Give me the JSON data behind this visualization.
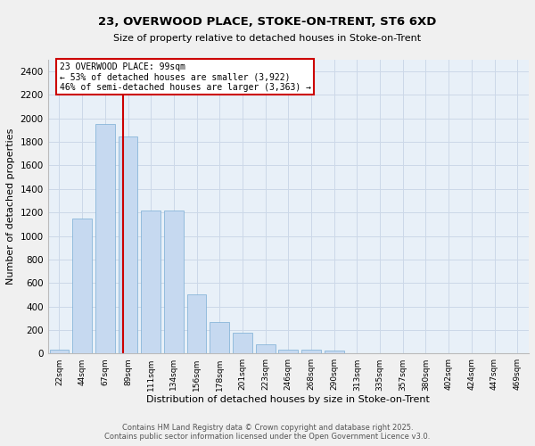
{
  "title1": "23, OVERWOOD PLACE, STOKE-ON-TRENT, ST6 6XD",
  "title2": "Size of property relative to detached houses in Stoke-on-Trent",
  "xlabel": "Distribution of detached houses by size in Stoke-on-Trent",
  "ylabel": "Number of detached properties",
  "categories": [
    "22sqm",
    "44sqm",
    "67sqm",
    "89sqm",
    "111sqm",
    "134sqm",
    "156sqm",
    "178sqm",
    "201sqm",
    "223sqm",
    "246sqm",
    "268sqm",
    "290sqm",
    "313sqm",
    "335sqm",
    "357sqm",
    "380sqm",
    "402sqm",
    "424sqm",
    "447sqm",
    "469sqm"
  ],
  "values": [
    30,
    1150,
    1950,
    1850,
    1220,
    1220,
    500,
    270,
    175,
    75,
    35,
    30,
    25,
    5,
    0,
    0,
    0,
    0,
    0,
    0,
    0
  ],
  "bar_color": "#c6d9f0",
  "bar_edge_color": "#7aadd4",
  "vline_x": 2.78,
  "vline_color": "#cc0000",
  "annotation_text": "23 OVERWOOD PLACE: 99sqm\n← 53% of detached houses are smaller (3,922)\n46% of semi-detached houses are larger (3,363) →",
  "annotation_box_color": "#ffffff",
  "annotation_box_edge": "#cc0000",
  "ylim": [
    0,
    2500
  ],
  "yticks": [
    0,
    200,
    400,
    600,
    800,
    1000,
    1200,
    1400,
    1600,
    1800,
    2000,
    2200,
    2400
  ],
  "grid_color": "#ccd8e8",
  "bg_color": "#e8f0f8",
  "fig_color": "#f0f0f0",
  "footnote1": "Contains HM Land Registry data © Crown copyright and database right 2025.",
  "footnote2": "Contains public sector information licensed under the Open Government Licence v3.0."
}
